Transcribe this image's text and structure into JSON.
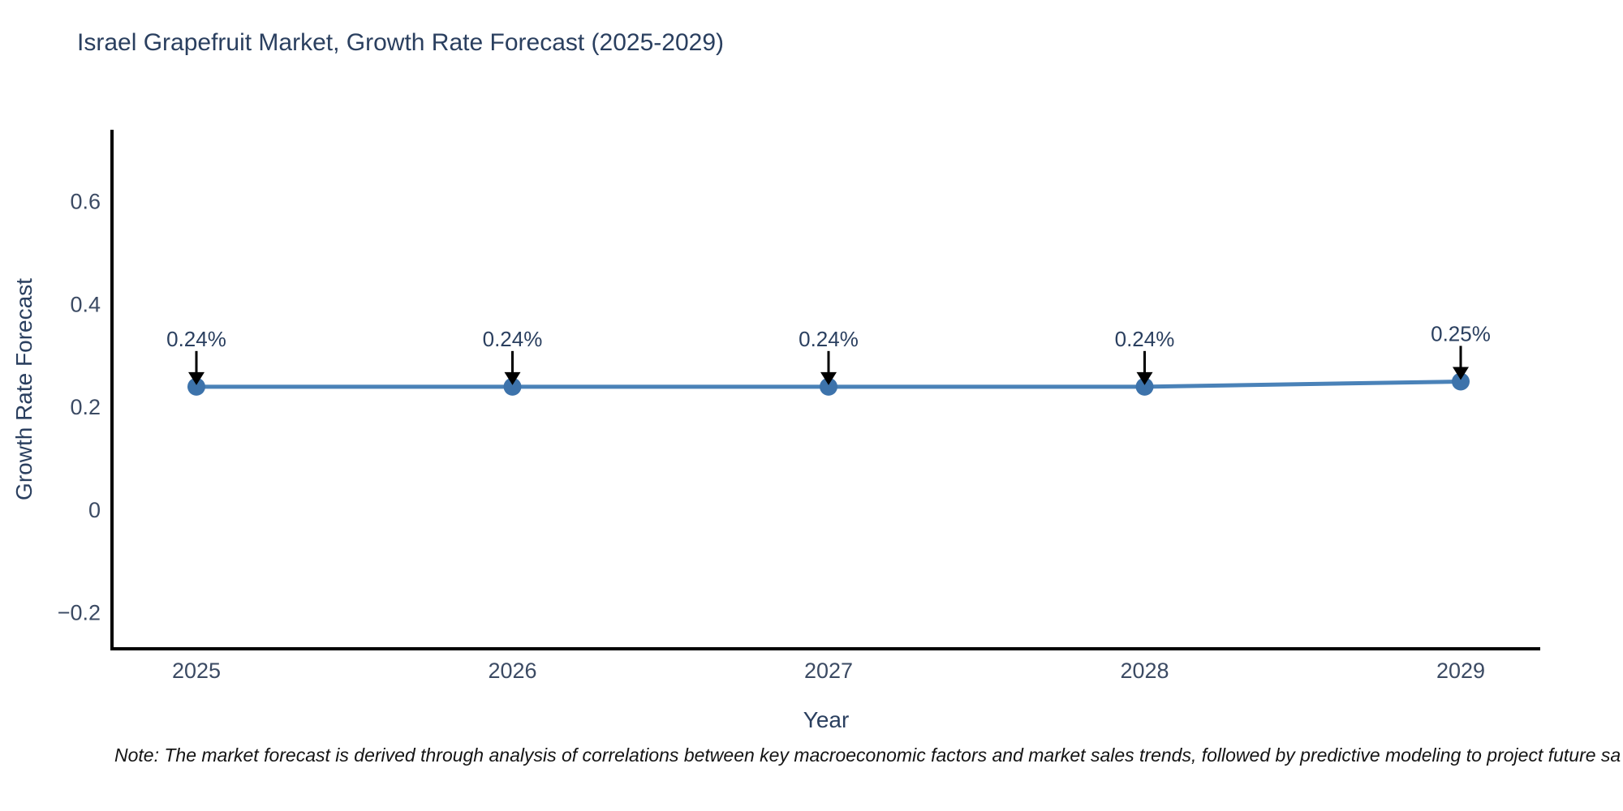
{
  "chart_data": {
    "type": "line",
    "title": "Israel Grapefruit Market, Growth Rate Forecast (2025-2029)",
    "xlabel": "Year",
    "ylabel": "Growth Rate Forecast",
    "x": [
      2025,
      2026,
      2027,
      2028,
      2029
    ],
    "values": [
      0.24,
      0.24,
      0.24,
      0.24,
      0.25
    ],
    "point_labels": [
      "0.24%",
      "0.24%",
      "0.24%",
      "0.24%",
      "0.25%"
    ],
    "yticks": [
      -0.2,
      0,
      0.2,
      0.4,
      0.6
    ],
    "ytick_labels": [
      "−0.2",
      "0",
      "0.2",
      "0.4",
      "0.6"
    ],
    "ylim": [
      -0.27,
      0.74
    ],
    "grid": false,
    "legend": false,
    "line_color": "#4a82b8",
    "marker_color": "#3d73ab",
    "axis_color": "#000000",
    "annotation_arrow_color": "#000000",
    "title_color": "#2a3f5f",
    "note": "Note: The market forecast is derived through analysis of correlations between key macroeconomic factors and market sales trends, followed by predictive modeling to project future sa"
  }
}
